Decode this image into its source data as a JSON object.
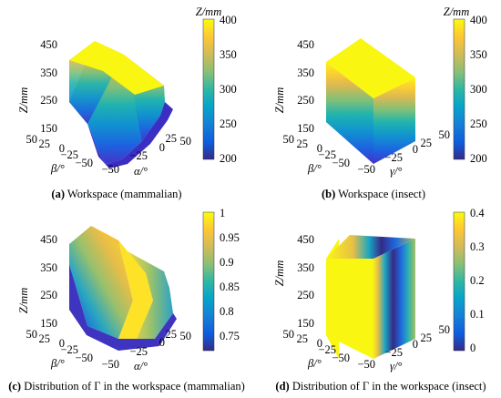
{
  "figure": {
    "panels": [
      {
        "id": "a",
        "caption_letter": "(a)",
        "caption_text": " Workspace (mammalian)",
        "z_label": "Z/mm",
        "z_ticks": [
          "450",
          "350",
          "250",
          "150"
        ],
        "beta_label": "β/°",
        "beta_ticks": [
          "50",
          "25",
          "0",
          "−25",
          "−50"
        ],
        "second_label": "α/°",
        "second_ticks": [
          "−50",
          "−25",
          "0",
          "25",
          "50"
        ],
        "colorbar_title": "Z/mm",
        "colorbar_ticks": [
          "400",
          "350",
          "300",
          "250",
          "200"
        ],
        "colorbar_range": [
          200,
          400
        ],
        "colormap": "parula"
      },
      {
        "id": "b",
        "caption_letter": "(b)",
        "caption_text": " Workspace (insect)",
        "z_label": "Z/mm",
        "z_ticks": [
          "450",
          "350",
          "250",
          "150"
        ],
        "beta_label": "β/°",
        "beta_ticks": [
          "50",
          "25",
          "0",
          "−25",
          "−50"
        ],
        "second_label": "γ/°",
        "second_ticks": [
          "−50",
          "−25",
          "0",
          "25",
          "50"
        ],
        "colorbar_title": "Z/mm",
        "colorbar_ticks": [
          "400",
          "350",
          "300",
          "250",
          "200"
        ],
        "colorbar_range": [
          200,
          400
        ],
        "colormap": "parula"
      },
      {
        "id": "c",
        "caption_letter": "(c)",
        "caption_text": " Distribution of Γ in the workspace (mammalian)",
        "z_label": "Z/mm",
        "z_ticks": [
          "450",
          "350",
          "250",
          "150"
        ],
        "beta_label": "β/°",
        "beta_ticks": [
          "50",
          "25",
          "0",
          "−25",
          "−50"
        ],
        "second_label": "α/°",
        "second_ticks": [
          "−50",
          "−25",
          "0",
          "25",
          "50"
        ],
        "colorbar_title": "",
        "colorbar_ticks": [
          "1",
          "0.95",
          "0.9",
          "0.85",
          "0.8",
          "0.75"
        ],
        "colorbar_range": [
          0.72,
          1.0
        ],
        "colormap": "parula"
      },
      {
        "id": "d",
        "caption_letter": "(d)",
        "caption_text": " Distribution of Γ in the workspace (insect)",
        "z_label": "Z/mm",
        "z_ticks": [
          "450",
          "350",
          "250",
          "150"
        ],
        "beta_label": "β/°",
        "beta_ticks": [
          "50",
          "25",
          "0",
          "−25",
          "−50"
        ],
        "second_label": "γ/°",
        "second_ticks": [
          "−50",
          "−25",
          "0",
          "25",
          "50"
        ],
        "colorbar_title": "",
        "colorbar_ticks": [
          "0.4",
          "0.3",
          "0.2",
          "0.1",
          "0"
        ],
        "colorbar_range": [
          0,
          0.4
        ],
        "colormap": "parula"
      }
    ]
  }
}
